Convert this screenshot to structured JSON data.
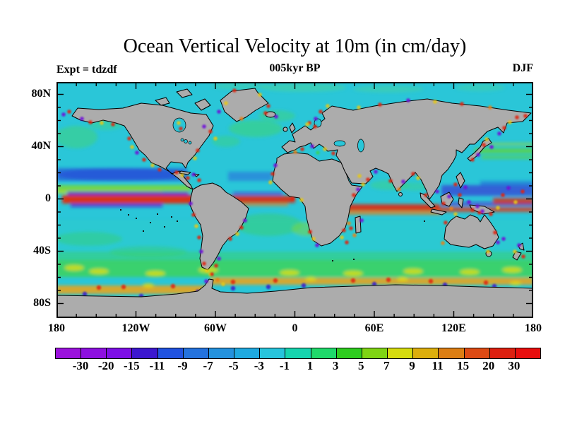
{
  "title": "Ocean Vertical Velocity at 10m (in cm/day)",
  "experiment_label": "Expt = tdzdf",
  "time_label": "005kyr BP",
  "season_label": "DJF",
  "map": {
    "lat_tick_labels": [
      "80N",
      "40N",
      "0",
      "40S",
      "80S"
    ],
    "lon_tick_labels": [
      "180",
      "120W",
      "60W",
      "0",
      "60E",
      "120E",
      "180"
    ],
    "land_color": "#acacac",
    "coastline_color": "#000000",
    "ocean_base_color": "#2ac6d8"
  },
  "colorbar": {
    "tick_labels": [
      "-30",
      "-20",
      "-15",
      "-11",
      "-9",
      "-7",
      "-5",
      "-3",
      "-1",
      "1",
      "3",
      "5",
      "7",
      "9",
      "11",
      "15",
      "20",
      "30"
    ],
    "colors": [
      "#9b12dd",
      "#8d10e0",
      "#7d0fe6",
      "#3c17cf",
      "#2152e0",
      "#2472de",
      "#2492de",
      "#1fa9e0",
      "#27c4dc",
      "#16d4ae",
      "#1fd96a",
      "#2ecc1e",
      "#7fd414",
      "#d6dc0e",
      "#ddae0c",
      "#dd7e14",
      "#dd4a14",
      "#dd2010",
      "#e80e0e"
    ]
  },
  "chart_data": {
    "type": "heatmap",
    "title": "Ocean Vertical Velocity at 10m (in cm/day)",
    "subtitle": "005kyr BP",
    "experiment": "Expt = tdzdf",
    "season": "DJF",
    "variable": "ocean vertical velocity at 10 m depth",
    "units": "cm/day",
    "projection": "equirectangular world map",
    "x": {
      "label": "longitude",
      "ticks": [
        "180",
        "120W",
        "60W",
        "0",
        "60E",
        "120E",
        "180"
      ],
      "range_deg": [
        -180,
        180
      ]
    },
    "y": {
      "label": "latitude",
      "ticks": [
        "80N",
        "40N",
        "0",
        "40S",
        "80S"
      ],
      "range_deg": [
        -90,
        90
      ]
    },
    "color_levels": [
      -30,
      -20,
      -15,
      -11,
      -9,
      -7,
      -5,
      -3,
      -1,
      1,
      3,
      5,
      7,
      9,
      11,
      15,
      20,
      30
    ],
    "level_colors": [
      "#9b12dd",
      "#8d10e0",
      "#7d0fe6",
      "#3c17cf",
      "#2152e0",
      "#2472de",
      "#2492de",
      "#1fa9e0",
      "#27c4dc",
      "#16d4ae",
      "#1fd96a",
      "#2ecc1e",
      "#7fd414",
      "#d6dc0e",
      "#ddae0c",
      "#dd7e14",
      "#dd4a14",
      "#dd2010",
      "#e80e0e"
    ],
    "features": [
      "narrow red band of strong upwelling (>20 cm/day) along the equator in Pacific, Atlantic and Indian oceans, flanked by thin purple downwelling bands",
      "broad weak field (cyan, -1 to 1 cm/day) over most subtropical ocean interiors",
      "dark blue downwelling band near 10-15N in the central/eastern Pacific and east of the Philippines",
      "green band of moderate upwelling (3-7 cm/day) along 45-60S with yellow maxima",
      "yellow-orange band with red spots hugging the Antarctic coast near 60-65S",
      "alternating red/purple/yellow hotspots along most continental coastlines (eastern boundary and island regions)",
      "gray land masses with black coastlines; gray Antarctica across the bottom"
    ]
  }
}
